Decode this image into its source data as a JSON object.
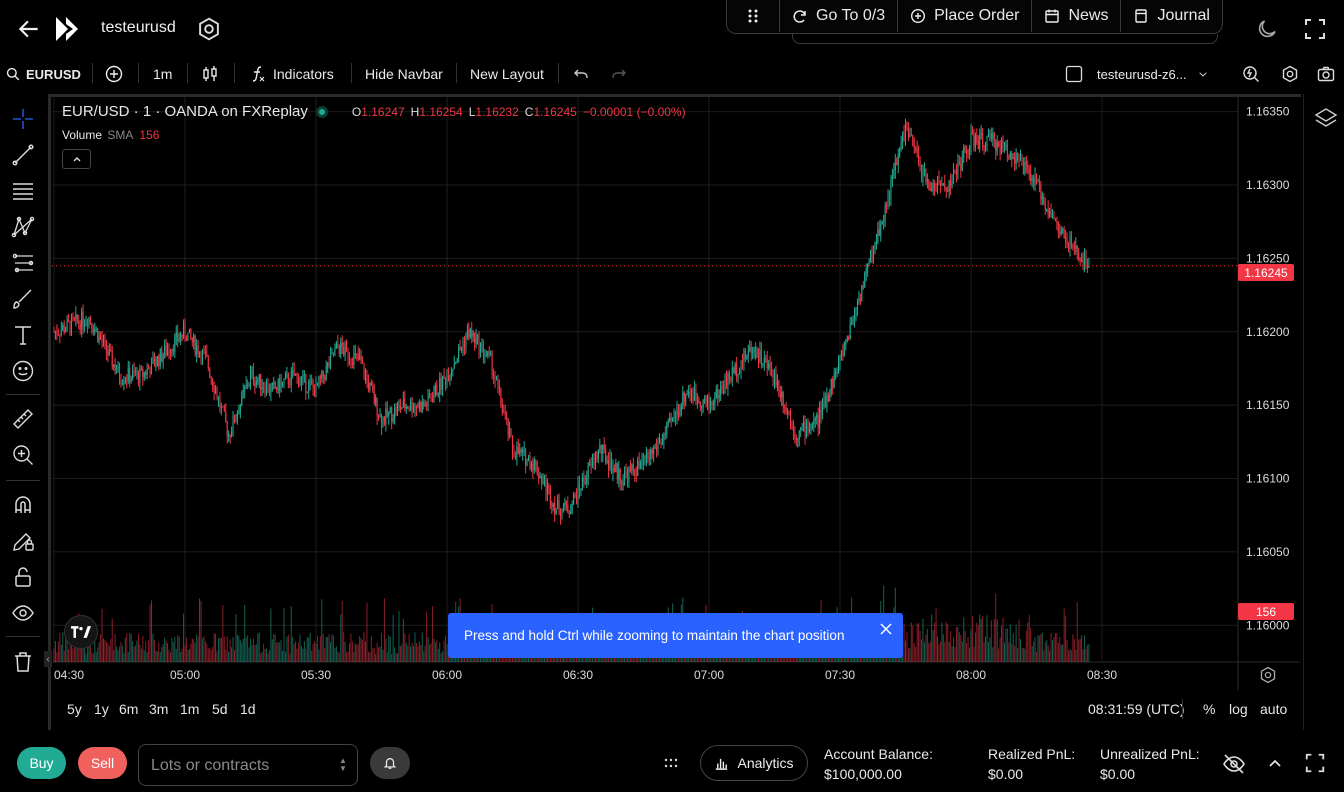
{
  "app": {
    "title": "testeurusd"
  },
  "menu": {
    "goto": "Go To 0/3",
    "place_order": "Place Order",
    "news": "News",
    "journal": "Journal"
  },
  "toolbar": {
    "symbol": "EURUSD",
    "interval": "1m",
    "indicators": "Indicators",
    "hide_navbar": "Hide Navbar",
    "new_layout": "New Layout",
    "layout_name": "testeurusd-z6..."
  },
  "legend": {
    "title": "EUR/USD · 1 · OANDA on FXReplay",
    "o_label": "O",
    "o": "1.16247",
    "h_label": "H",
    "h": "1.16254",
    "l_label": "L",
    "l": "1.16232",
    "c_label": "C",
    "c": "1.16245",
    "change": "−0.00001 (−0.00%)",
    "volume_label": "Volume",
    "sma_label": "SMA",
    "volume_value": "156"
  },
  "price_axis": {
    "ticks": [
      "1.16350",
      "1.16300",
      "1.16250",
      "1.16200",
      "1.16150",
      "1.16100",
      "1.16050",
      "1.16000"
    ],
    "current_price": "1.16245",
    "volume_tag": "156"
  },
  "time_axis": {
    "ticks": [
      "04:30",
      "05:00",
      "05:30",
      "06:00",
      "06:30",
      "07:00",
      "07:30",
      "08:00",
      "08:30"
    ]
  },
  "toast": {
    "text": "Press and hold Ctrl while zooming to maintain the chart position"
  },
  "range_bar": {
    "ranges": [
      "5y",
      "1y",
      "6m",
      "3m",
      "1m",
      "5d",
      "1d"
    ],
    "clock": "08:31:59 (UTC)",
    "percent": "%",
    "log": "log",
    "auto": "auto"
  },
  "trade": {
    "buy": "Buy",
    "sell": "Sell",
    "lots_placeholder": "Lots or contracts",
    "analytics": "Analytics",
    "account_balance_label": "Account Balance:",
    "account_balance": "$100,000.00",
    "realized_label": "Realized PnL:",
    "realized": "$0.00",
    "unrealized_label": "Unrealized PnL:",
    "unrealized": "$0.00"
  },
  "colors": {
    "up": "#22ab94",
    "down": "#f23645",
    "accent": "#2962ff"
  },
  "chart_data": {
    "type": "candlestick",
    "title": "EUR/USD · 1 · OANDA on FXReplay",
    "interval": "1m",
    "ylim": [
      1.15975,
      1.1636
    ],
    "x_ticks": [
      "04:30",
      "05:00",
      "05:30",
      "06:00",
      "06:30",
      "07:00",
      "07:30",
      "08:00",
      "08:30"
    ],
    "close_path": [
      [
        "04:30",
        1.162
      ],
      [
        "04:38",
        1.1621
      ],
      [
        "04:45",
        1.1617
      ],
      [
        "04:50",
        1.1617
      ],
      [
        "05:00",
        1.162
      ],
      [
        "05:05",
        1.1618
      ],
      [
        "05:10",
        1.1613
      ],
      [
        "05:15",
        1.1617
      ],
      [
        "05:20",
        1.1616
      ],
      [
        "05:25",
        1.1617
      ],
      [
        "05:30",
        1.1616
      ],
      [
        "05:35",
        1.1619
      ],
      [
        "05:40",
        1.1618
      ],
      [
        "05:45",
        1.1614
      ],
      [
        "05:50",
        1.1615
      ],
      [
        "05:55",
        1.1615
      ],
      [
        "06:00",
        1.1617
      ],
      [
        "06:05",
        1.162
      ],
      [
        "06:10",
        1.1618
      ],
      [
        "06:15",
        1.1612
      ],
      [
        "06:20",
        1.1611
      ],
      [
        "06:25",
        1.1608
      ],
      [
        "06:28",
        1.1608
      ],
      [
        "06:35",
        1.1612
      ],
      [
        "06:40",
        1.161
      ],
      [
        "06:45",
        1.1611
      ],
      [
        "06:50",
        1.1613
      ],
      [
        "06:55",
        1.1616
      ],
      [
        "07:00",
        1.1615
      ],
      [
        "07:05",
        1.1617
      ],
      [
        "07:10",
        1.1619
      ],
      [
        "07:15",
        1.1617
      ],
      [
        "07:20",
        1.1613
      ],
      [
        "07:25",
        1.1614
      ],
      [
        "07:30",
        1.1618
      ],
      [
        "07:35",
        1.1623
      ],
      [
        "07:40",
        1.1628
      ],
      [
        "07:45",
        1.1634
      ],
      [
        "07:50",
        1.163
      ],
      [
        "07:55",
        1.163
      ],
      [
        "08:00",
        1.1633
      ],
      [
        "08:05",
        1.1633
      ],
      [
        "08:10",
        1.1632
      ],
      [
        "08:15",
        1.163
      ],
      [
        "08:20",
        1.1627
      ],
      [
        "08:25",
        1.1625
      ],
      [
        "08:27",
        1.16245
      ]
    ],
    "volume_latest": 156,
    "current_price": 1.16245
  }
}
